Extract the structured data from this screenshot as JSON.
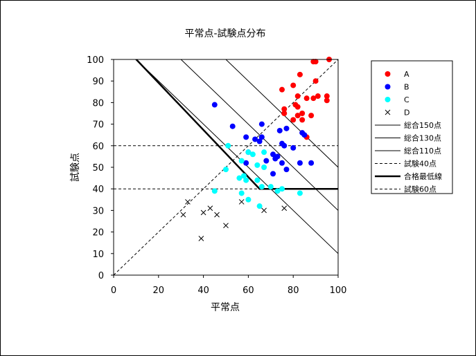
{
  "chart_data": {
    "type": "scatter",
    "title": "平常点-試験点分布",
    "xlabel": "平常点",
    "ylabel": "試験点",
    "xlim": [
      0,
      100
    ],
    "ylim": [
      0,
      100
    ],
    "xticks": [
      "0",
      "20",
      "40",
      "60",
      "80",
      "100"
    ],
    "yticks": [
      "0",
      "10",
      "20",
      "30",
      "40",
      "50",
      "60",
      "70",
      "80",
      "90",
      "100"
    ],
    "legend_position": "right",
    "series": [
      {
        "name": "A",
        "marker": "circle",
        "color": "#ff0000",
        "points": [
          [
            96,
            100
          ],
          [
            89,
            99
          ],
          [
            90,
            99
          ],
          [
            83,
            93
          ],
          [
            80,
            88
          ],
          [
            90,
            90
          ],
          [
            75,
            86
          ],
          [
            82,
            83
          ],
          [
            86,
            82
          ],
          [
            89,
            82
          ],
          [
            91,
            83
          ],
          [
            95,
            83
          ],
          [
            95,
            81
          ],
          [
            81,
            79
          ],
          [
            82,
            78
          ],
          [
            76,
            77
          ],
          [
            76,
            75
          ],
          [
            80,
            72
          ],
          [
            82,
            74
          ],
          [
            84,
            75
          ],
          [
            84,
            72
          ],
          [
            88,
            74
          ],
          [
            86,
            64
          ]
        ]
      },
      {
        "name": "B",
        "marker": "circle",
        "color": "#0000ff",
        "points": [
          [
            45,
            79
          ],
          [
            53,
            69
          ],
          [
            66,
            70
          ],
          [
            77,
            68
          ],
          [
            74,
            67
          ],
          [
            84,
            66
          ],
          [
            85,
            65
          ],
          [
            59,
            64
          ],
          [
            63,
            63
          ],
          [
            66,
            64
          ],
          [
            65,
            62
          ],
          [
            75,
            61
          ],
          [
            76,
            60
          ],
          [
            80,
            59
          ],
          [
            60,
            57
          ],
          [
            71,
            56
          ],
          [
            73,
            55
          ],
          [
            72,
            54
          ],
          [
            68,
            53
          ],
          [
            75,
            52
          ],
          [
            83,
            52
          ],
          [
            88,
            52
          ],
          [
            59,
            52
          ],
          [
            77,
            49
          ],
          [
            71,
            47
          ]
        ]
      },
      {
        "name": "C",
        "marker": "circle",
        "color": "#00ffff",
        "points": [
          [
            51,
            60
          ],
          [
            60,
            57
          ],
          [
            62,
            56
          ],
          [
            67,
            57
          ],
          [
            57,
            53
          ],
          [
            64,
            51
          ],
          [
            67,
            50
          ],
          [
            50,
            49
          ],
          [
            58,
            46
          ],
          [
            56,
            45
          ],
          [
            59,
            44
          ],
          [
            64,
            44
          ],
          [
            66,
            41
          ],
          [
            70,
            41
          ],
          [
            75,
            40
          ],
          [
            73,
            39
          ],
          [
            57,
            38
          ],
          [
            83,
            38
          ],
          [
            45,
            39
          ],
          [
            60,
            35
          ],
          [
            65,
            32
          ]
        ]
      },
      {
        "name": "D",
        "marker": "x",
        "color": "#000000",
        "points": [
          [
            33,
            34
          ],
          [
            43,
            31
          ],
          [
            40,
            29
          ],
          [
            31,
            28
          ],
          [
            46,
            28
          ],
          [
            57,
            34
          ],
          [
            67,
            30
          ],
          [
            76,
            31
          ],
          [
            50,
            23
          ],
          [
            39,
            17
          ]
        ]
      }
    ],
    "lines": [
      {
        "name": "総合150点",
        "style": "thin",
        "points": [
          [
            50,
            100
          ],
          [
            100,
            50
          ]
        ]
      },
      {
        "name": "総合130点",
        "style": "thin",
        "points": [
          [
            30,
            100
          ],
          [
            100,
            30
          ]
        ]
      },
      {
        "name": "総合110点",
        "style": "thin",
        "points": [
          [
            10,
            100
          ],
          [
            100,
            10
          ]
        ]
      },
      {
        "name": "試験40点",
        "style": "dashed",
        "points": [
          [
            0,
            40
          ],
          [
            100,
            40
          ]
        ]
      },
      {
        "name": "合格最低線",
        "style": "thick",
        "points": [
          [
            5.5,
            105
          ],
          [
            65,
            40
          ],
          [
            100,
            40
          ]
        ]
      },
      {
        "name": "試験60点",
        "style": "dashed",
        "points": [
          [
            0,
            60
          ],
          [
            100,
            60
          ]
        ]
      }
    ],
    "reference_line": {
      "style": "dashed",
      "points": [
        [
          0,
          0
        ],
        [
          100,
          100
        ]
      ]
    }
  }
}
